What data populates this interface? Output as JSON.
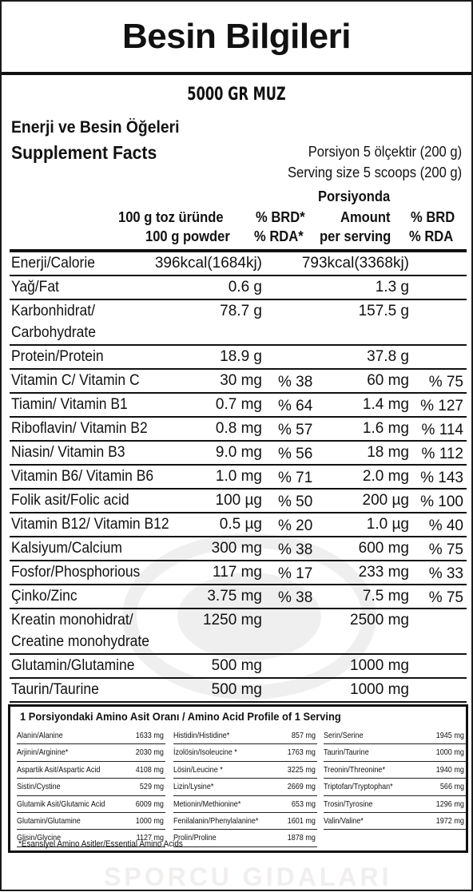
{
  "title": "Besin Bilgileri",
  "product": "5000 GR MUZ",
  "heading_tr": "Enerji ve Besin Öğeleri",
  "heading_en": "Supplement Facts",
  "portion_tr": "Porsiyon 5 ölçektir (200 g)",
  "portion_en": "Serving size 5 scoops (200 g)",
  "columns": {
    "per100_tr": "100 g toz üründe",
    "per100_en": "100 g powder",
    "rda_tr": "% BRD*",
    "rda_en": "% RDA*",
    "serving_tr": "Porsiyonda",
    "serving_amount": "Amount",
    "serving_en": "per serving",
    "rda2_tr": "% BRD",
    "rda2_en": "% RDA"
  },
  "nutrients": [
    {
      "name": "Enerji/Calorie",
      "v1": "396kcal(1684kj)",
      "r1": "",
      "v2": "793kcal(3368kj)",
      "r2": ""
    },
    {
      "name": "Yağ/Fat",
      "v1": "0.6 g",
      "r1": "",
      "v2": "1.3 g",
      "r2": ""
    },
    {
      "name": "Karbonhidrat/",
      "name2": "Carbohydrate",
      "v1": "78.7 g",
      "r1": "",
      "v2": "157.5 g",
      "r2": ""
    },
    {
      "name": "Protein/Protein",
      "v1": "18.9 g",
      "r1": "",
      "v2": "37.8 g",
      "r2": ""
    },
    {
      "name": "Vitamin C/ Vitamin C",
      "v1": "30 mg",
      "r1": "% 38",
      "v2": "60 mg",
      "r2": "% 75"
    },
    {
      "name": "Tiamin/ Vitamin B1",
      "v1": "0.7 mg",
      "r1": "% 64",
      "v2": "1.4 mg",
      "r2": "% 127"
    },
    {
      "name": "Riboflavin/ Vitamin B2",
      "v1": "0.8 mg",
      "r1": "% 57",
      "v2": "1.6 mg",
      "r2": "% 114"
    },
    {
      "name": "Niasin/ Vitamin B3",
      "v1": "9.0 mg",
      "r1": "% 56",
      "v2": "18 mg",
      "r2": "% 112"
    },
    {
      "name": "Vitamin B6/ Vitamin B6",
      "v1": "1.0 mg",
      "r1": "% 71",
      "v2": "2.0 mg",
      "r2": "% 143"
    },
    {
      "name": "Folik asit/Folic acid",
      "v1": "100 µg",
      "r1": "% 50",
      "v2": "200 µg",
      "r2": "% 100"
    },
    {
      "name": "Vitamin B12/ Vitamin B12",
      "v1": "0.5 µg",
      "r1": "% 20",
      "v2": "1.0 µg",
      "r2": "% 40"
    },
    {
      "name": "Kalsiyum/Calcium",
      "v1": "300 mg",
      "r1": "% 38",
      "v2": "600 mg",
      "r2": "% 75"
    },
    {
      "name": "Fosfor/Phosphorious",
      "v1": "117 mg",
      "r1": "% 17",
      "v2": "233 mg",
      "r2": "% 33"
    },
    {
      "name": "Çinko/Zinc",
      "v1": "3.75 mg",
      "r1": "% 38",
      "v2": "7.5 mg",
      "r2": "% 75"
    },
    {
      "name": "Kreatin monohidrat/",
      "name2": "Creatine monohydrate",
      "v1": "1250 mg",
      "r1": "",
      "v2": "2500 mg",
      "r2": ""
    },
    {
      "name": "Glutamin/Glutamine",
      "v1": "500 mg",
      "r1": "",
      "v2": "1000 mg",
      "r2": ""
    },
    {
      "name": "Taurin/Taurine",
      "v1": "500 mg",
      "r1": "",
      "v2": "1000 mg",
      "r2": ""
    }
  ],
  "amino": {
    "title": "1 Porsiyondaki Amino Asit Oranı / Amino Acid Profile of 1 Serving",
    "columns": [
      [
        {
          "name": "Alanin/Alanine",
          "value": "1633 mg"
        },
        {
          "name": "Arjinin/Arginine*",
          "value": "2030 mg"
        },
        {
          "name": "Aspartik Asit/Aspartic Acid",
          "value": "4108 mg"
        },
        {
          "name": "Sistin/Cystine",
          "value": "529 mg"
        },
        {
          "name": "Glutamik Asit/Glutamic Acid",
          "value": "6009 mg"
        },
        {
          "name": "Glutamin/Glutamine",
          "value": "1000 mg"
        },
        {
          "name": "Glisin/Glycine",
          "value": "1127 mg"
        }
      ],
      [
        {
          "name": "Histidin/Histidine*",
          "value": "857 mg"
        },
        {
          "name": "İzolösin/Isoleucine *",
          "value": "1763 mg"
        },
        {
          "name": "Lösin/Leucine *",
          "value": "3225 mg"
        },
        {
          "name": "Lizin/Lysine*",
          "value": "2669 mg"
        },
        {
          "name": "Metionin/Methionine*",
          "value": "653 mg"
        },
        {
          "name": "Fenilalanin/Phenylalanine*",
          "value": "1601 mg"
        },
        {
          "name": "Prolin/Proline",
          "value": "1878 mg"
        }
      ],
      [
        {
          "name": "Serin/Serine",
          "value": "1945 mg"
        },
        {
          "name": "Taurin/Taurine",
          "value": "1000 mg"
        },
        {
          "name": "Treonin/Threonine*",
          "value": "1940 mg"
        },
        {
          "name": "Triptofan/Tryptophan*",
          "value": "566 mg"
        },
        {
          "name": "Trosin/Tyrosine",
          "value": "1296 mg"
        },
        {
          "name": "Valin/Valine*",
          "value": "1972 mg"
        }
      ]
    ],
    "note": "*Esansiyel Amino Asitler/Essential Amino Acids"
  },
  "watermark_text": "SPORCU GIDALARI"
}
